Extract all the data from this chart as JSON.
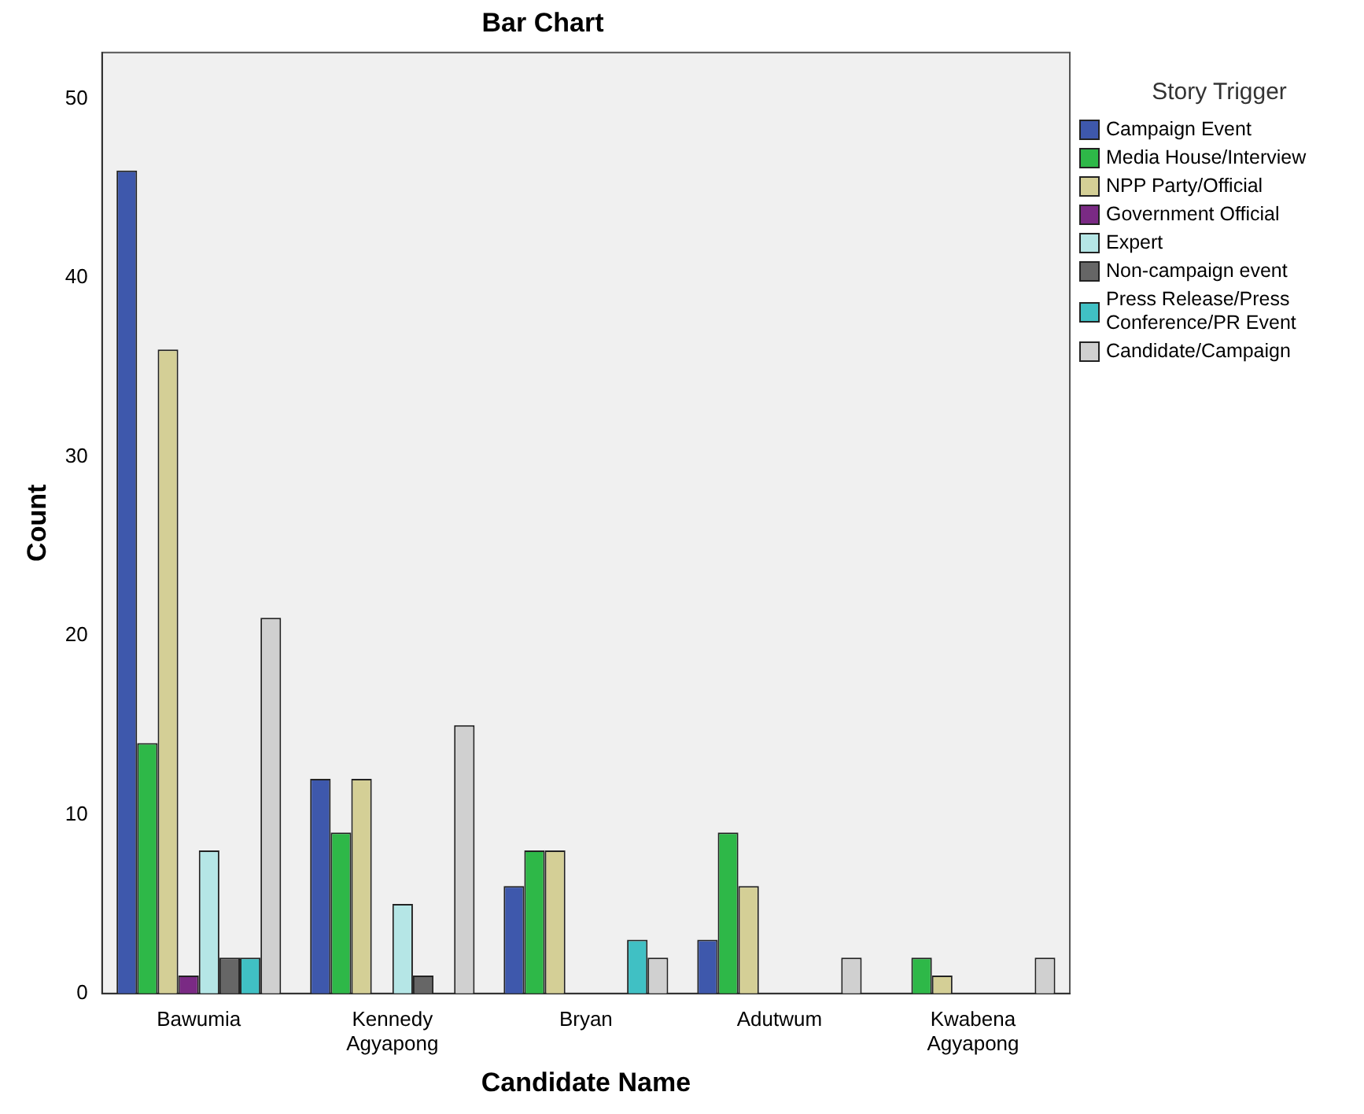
{
  "chart_data": {
    "type": "bar",
    "title": "Bar Chart",
    "xlabel": "Candidate Name",
    "ylabel": "Count",
    "legend_title": "Story Trigger",
    "categories": [
      "Bawumia",
      "Kennedy Agyapong",
      "Bryan",
      "Adutwum",
      "Kwabena Agyapong"
    ],
    "series": [
      {
        "name": "Campaign Event",
        "color": "#3e58ac",
        "values": [
          46,
          12,
          6,
          3,
          0
        ]
      },
      {
        "name": "Media House/Interview",
        "color": "#2eb848",
        "values": [
          14,
          9,
          8,
          9,
          2
        ]
      },
      {
        "name": "NPP Party/Official",
        "color": "#d4cf96",
        "values": [
          36,
          12,
          8,
          6,
          1
        ]
      },
      {
        "name": "Government Official",
        "color": "#7a2a84",
        "values": [
          1,
          0,
          0,
          0,
          0
        ]
      },
      {
        "name": "Expert",
        "color": "#b5e6e6",
        "values": [
          8,
          5,
          0,
          0,
          0
        ]
      },
      {
        "name": "Non-campaign event",
        "color": "#666666",
        "values": [
          2,
          1,
          0,
          0,
          0
        ]
      },
      {
        "name": "Press Release/Press Conference/PR Event",
        "color": "#40c0c4",
        "values": [
          2,
          0,
          3,
          0,
          0
        ]
      },
      {
        "name": "Candidate/Campaign",
        "color": "#d0d0d0",
        "values": [
          21,
          15,
          2,
          2,
          2
        ]
      }
    ],
    "ylim": [
      0,
      52.6
    ],
    "yticks": [
      0,
      10,
      20,
      30,
      40,
      50
    ],
    "grid": false,
    "legend": "right"
  }
}
